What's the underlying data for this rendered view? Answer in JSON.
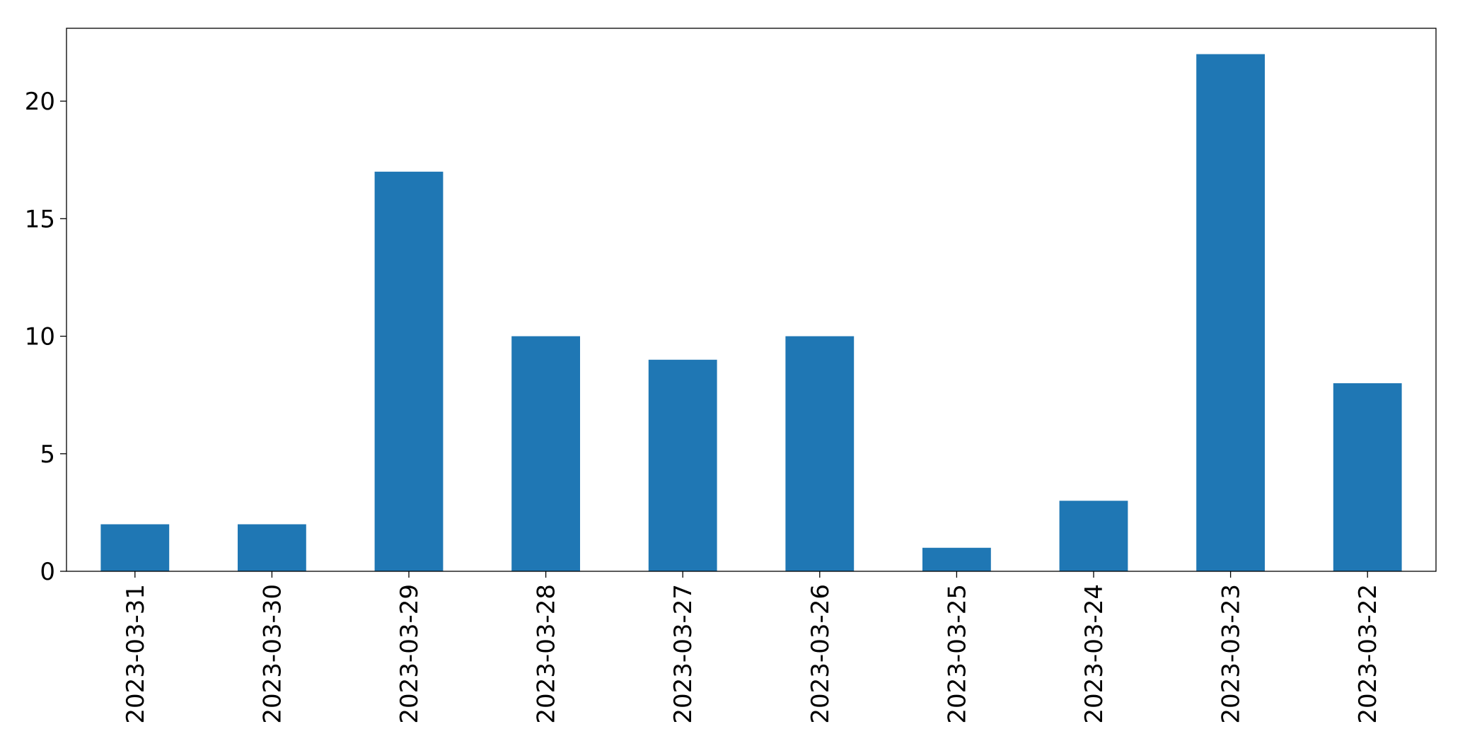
{
  "chart_data": {
    "type": "bar",
    "x": [
      "2023-03-31",
      "2023-03-30",
      "2023-03-29",
      "2023-03-28",
      "2023-03-27",
      "2023-03-26",
      "2023-03-25",
      "2023-03-24",
      "2023-03-23",
      "2023-03-22"
    ],
    "values": [
      2,
      2,
      17,
      10,
      9,
      10,
      1,
      3,
      22,
      8
    ],
    "color": "#1f77b4",
    "ylim": [
      0,
      23.1
    ],
    "yticks": [
      0,
      5,
      10,
      15,
      20
    ],
    "grid": false
  }
}
